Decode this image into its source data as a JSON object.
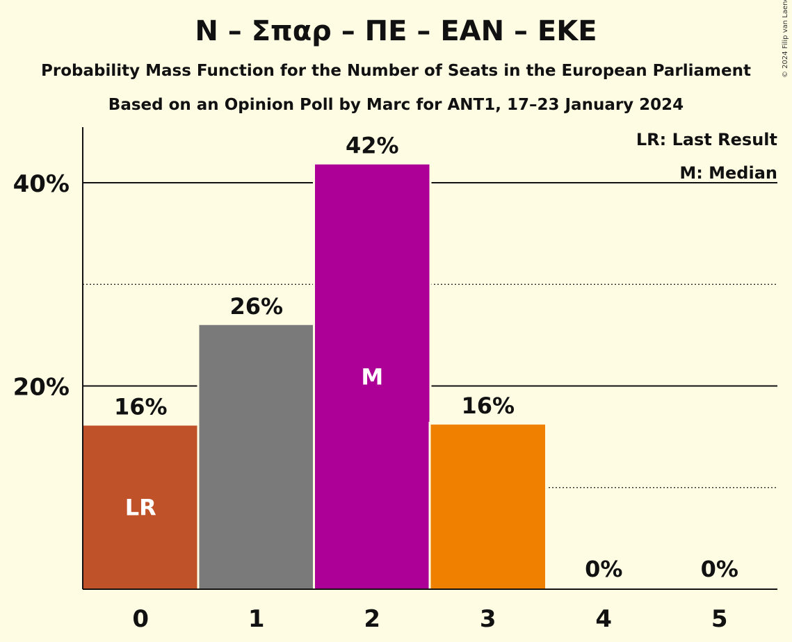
{
  "header": {
    "title": "N – Σπαρ – ΠΕ – EAN – EKE",
    "subtitle": "Probability Mass Function for the Number of Seats in the European Parliament",
    "source": "Based on an Opinion Poll by Marc for ANT1, 17–23 January 2024",
    "copyright": "© 2024 Filip van Laenen"
  },
  "legend": {
    "lr": "LR: Last Result",
    "m": "M: Median"
  },
  "chart_data": {
    "type": "bar",
    "categories": [
      "0",
      "1",
      "2",
      "3",
      "4",
      "5"
    ],
    "values": [
      16.1,
      26.0,
      41.8,
      16.2,
      0,
      0
    ],
    "value_labels": [
      "16%",
      "26%",
      "42%",
      "16%",
      "0%",
      "0%"
    ],
    "bar_colors": [
      "#c0522a",
      "#7a7a7a",
      "#ad0096",
      "#f08000",
      "#c0522a",
      "#c0522a"
    ],
    "bar_marks": [
      "LR",
      "",
      "M",
      "",
      "",
      ""
    ],
    "ylim": [
      0,
      45
    ],
    "yticks_major": [
      20,
      40
    ],
    "ytick_labels": [
      "20%",
      "40%"
    ],
    "yticks_minor": [
      10,
      30
    ],
    "grid": true,
    "legend_position": "top-right"
  }
}
